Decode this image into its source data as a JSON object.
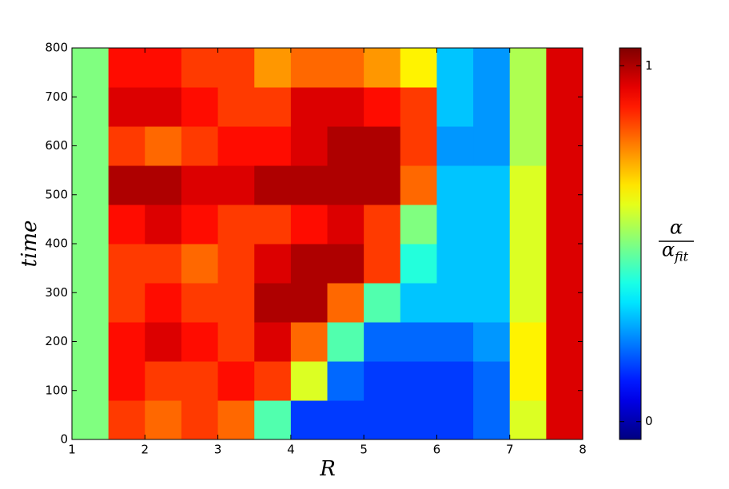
{
  "chart_data": {
    "type": "heatmap",
    "x_label": "R",
    "y_label": "time",
    "colorbar_label": {
      "numerator": "α",
      "denominator": "α",
      "denominator_subscript": "fit"
    },
    "colormap": "jet",
    "x": [
      1.25,
      1.75,
      2.25,
      2.75,
      3.25,
      3.75,
      4.25,
      4.75,
      5.25,
      5.75,
      6.25,
      6.75,
      7.25,
      7.75
    ],
    "y": [
      40,
      120,
      200,
      280,
      360,
      440,
      520,
      600,
      680,
      760
    ],
    "z": [
      [
        0.5,
        0.85,
        0.8,
        0.85,
        0.8,
        0.45,
        0.15,
        0.15,
        0.15,
        0.15,
        0.15,
        0.2,
        0.6,
        0.95
      ],
      [
        0.5,
        0.9,
        0.85,
        0.85,
        0.9,
        0.85,
        0.6,
        0.2,
        0.15,
        0.15,
        0.15,
        0.2,
        0.65,
        0.95
      ],
      [
        0.5,
        0.9,
        0.95,
        0.9,
        0.85,
        0.95,
        0.8,
        0.45,
        0.2,
        0.2,
        0.2,
        0.25,
        0.65,
        0.95
      ],
      [
        0.5,
        0.85,
        0.9,
        0.85,
        0.85,
        1.0,
        1.0,
        0.8,
        0.45,
        0.3,
        0.3,
        0.3,
        0.6,
        0.95
      ],
      [
        0.5,
        0.85,
        0.85,
        0.8,
        0.85,
        0.95,
        1.0,
        1.0,
        0.85,
        0.4,
        0.3,
        0.3,
        0.6,
        0.95
      ],
      [
        0.5,
        0.9,
        0.95,
        0.9,
        0.85,
        0.85,
        0.9,
        0.95,
        0.85,
        0.5,
        0.3,
        0.3,
        0.6,
        0.95
      ],
      [
        0.5,
        1.0,
        1.0,
        0.95,
        0.95,
        1.0,
        1.0,
        1.0,
        1.0,
        0.8,
        0.3,
        0.3,
        0.6,
        0.95
      ],
      [
        0.5,
        0.85,
        0.8,
        0.85,
        0.9,
        0.9,
        0.95,
        1.0,
        1.0,
        0.85,
        0.25,
        0.25,
        0.55,
        0.95
      ],
      [
        0.5,
        0.95,
        0.95,
        0.9,
        0.85,
        0.85,
        0.95,
        0.95,
        0.9,
        0.85,
        0.3,
        0.25,
        0.55,
        0.95
      ],
      [
        0.5,
        0.9,
        0.9,
        0.85,
        0.85,
        0.75,
        0.8,
        0.8,
        0.75,
        0.65,
        0.3,
        0.25,
        0.55,
        0.95
      ]
    ],
    "xlim": [
      1,
      8
    ],
    "ylim": [
      0,
      800
    ],
    "xticks": [
      1,
      2,
      3,
      4,
      5,
      6,
      7,
      8
    ],
    "yticks": [
      0,
      100,
      200,
      300,
      400,
      500,
      600,
      700,
      800
    ],
    "clim": [
      -0.05,
      1.05
    ],
    "cticks": [
      0,
      1
    ]
  }
}
